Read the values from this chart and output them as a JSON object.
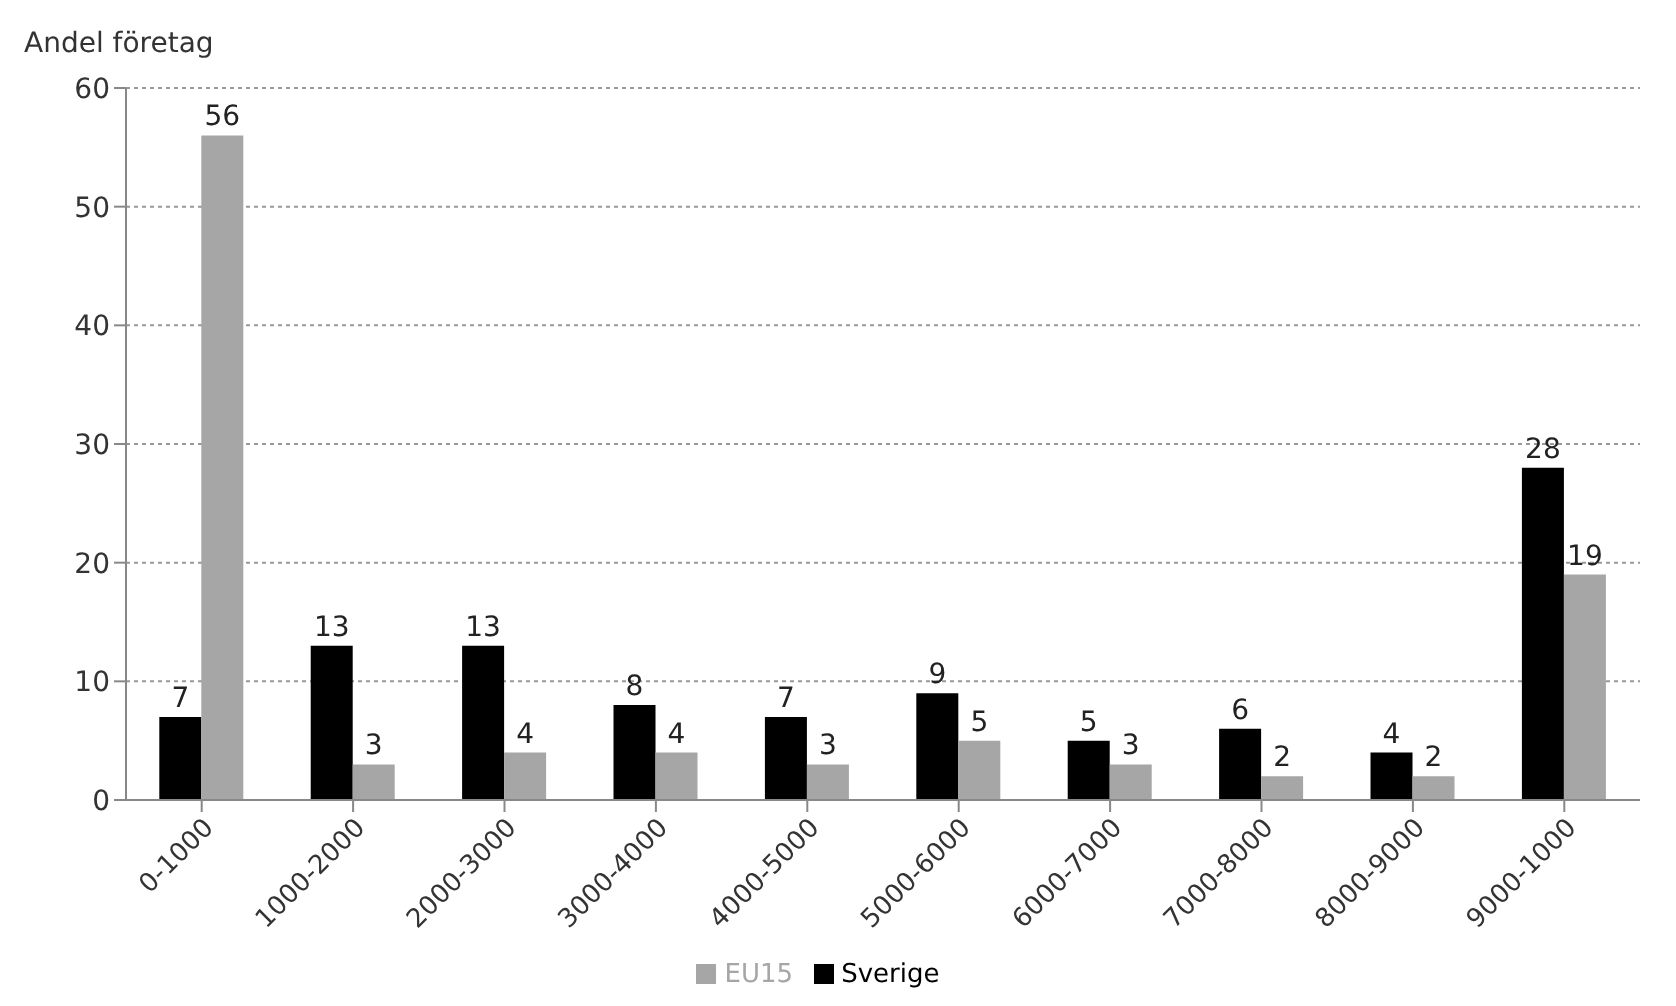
{
  "chart_data": {
    "type": "bar",
    "ylabel": "Andel företag",
    "categories": [
      "0-1000",
      "1000-2000",
      "2000-3000",
      "3000-4000",
      "4000-5000",
      "5000-6000",
      "6000-7000",
      "7000-8000",
      "8000-9000",
      "9000-1000"
    ],
    "series": [
      {
        "name": "Sverige",
        "color": "#000000",
        "values": [
          7,
          13,
          13,
          8,
          7,
          9,
          5,
          6,
          4,
          28
        ]
      },
      {
        "name": "EU15",
        "color": "#a6a6a6",
        "values": [
          56,
          3,
          4,
          4,
          3,
          5,
          3,
          2,
          2,
          19
        ]
      }
    ],
    "ylim": [
      0,
      60
    ],
    "yticks": [
      0,
      10,
      20,
      30,
      40,
      50,
      60
    ],
    "grid": "y",
    "legend": "bottom",
    "data_labels": true
  }
}
